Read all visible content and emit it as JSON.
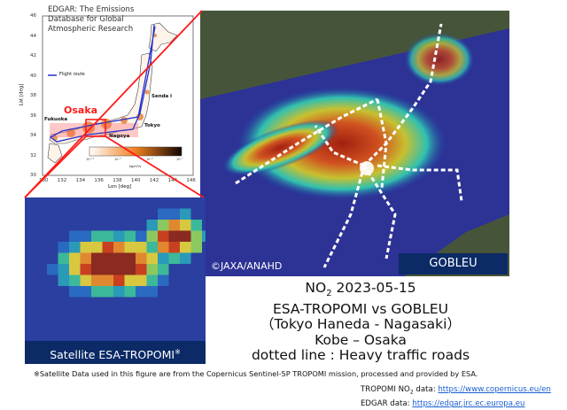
{
  "inset_map": {
    "title_lines": [
      "EDGAR: The Emissions",
      "Database for Global",
      "Atmospheric Research"
    ],
    "legend_label": "Flight route",
    "xlabel": "Lon [deg]",
    "ylabel": "Lat [deg]",
    "x_ticks": [
      "130",
      "132",
      "134",
      "136",
      "138",
      "140",
      "142",
      "144",
      "146"
    ],
    "y_ticks": [
      "46",
      "44",
      "42",
      "40",
      "38",
      "36",
      "34",
      "32",
      "30"
    ],
    "cities": {
      "osaka": "Osaka",
      "fukuoka": "Fukuoka",
      "nagoya": "Nagoya",
      "tokyo": "Tokyo",
      "sendai": "Senda i"
    },
    "colorbar_ticks": [
      "10⁻¹¹",
      "10⁻⁹",
      "10⁻⁸",
      "10⁻⁷"
    ],
    "colorbar_unit": "kg/m²/s",
    "colors": {
      "route": "#2233cc",
      "highlight": "#ff1a1a",
      "emission": "#e07020"
    }
  },
  "goblue_panel": {
    "label": "GOBLEU",
    "copyright": "©JAXA/ANAHD"
  },
  "tropomi_panel": {
    "label": "Satellite ESA-TROPOMI",
    "label_mark": "※"
  },
  "caption": {
    "line1_prefix": "NO",
    "line1_sub": "2",
    "line1_rest": " 2023-05-15",
    "line2": "ESA-TROPOMI vs GOBLEU",
    "line3": "（Tokyo Haneda - Nagasaki）",
    "line4": "Kobe – Osaka",
    "line5": "dotted line : Heavy traffic roads"
  },
  "footnote": "※Satellite Data used in this figure are from the Copernicus Sentinel-5P TROPOMI mission, processed and provided by ESA.",
  "references": {
    "tropomi_prefix": "TROPOMI NO",
    "tropomi_sub": "2",
    "tropomi_suffix": " data: ",
    "tropomi_url": "https://www.copernicus.eu/en",
    "edgar_prefix": "EDGAR data: ",
    "edgar_url": "https://edgar.jrc.ec.europa.eu"
  }
}
